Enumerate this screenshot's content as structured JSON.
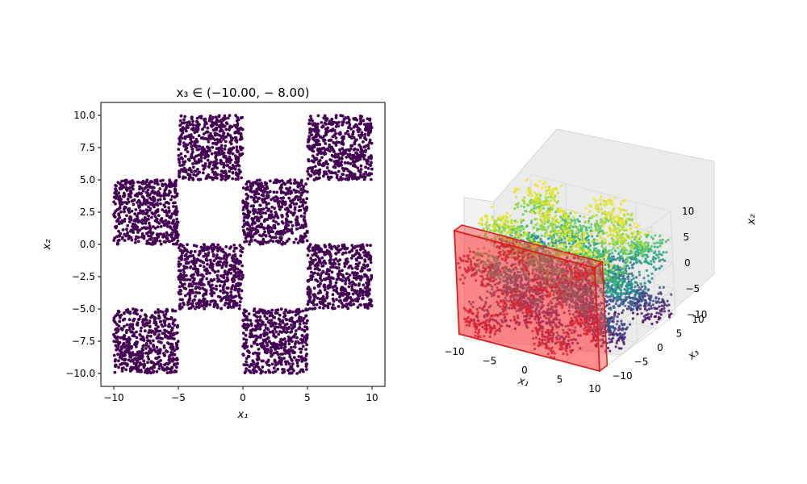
{
  "figure": {
    "panel_left_title": "x₃ ∈ (−10.00, − 8.00)"
  },
  "chart_data": [
    {
      "type": "scatter",
      "title": "x₃ ∈ (−10.00, − 8.00)",
      "xlabel": "x₁",
      "ylabel": "x₂",
      "xlim": [
        -11,
        11
      ],
      "ylim": [
        -11,
        11
      ],
      "xticks": [
        -10,
        -5,
        0,
        5,
        10
      ],
      "xtick_labels": [
        "−10",
        "−5",
        "0",
        "5",
        "10"
      ],
      "yticks": [
        -10.0,
        -7.5,
        -5.0,
        -2.5,
        0.0,
        2.5,
        5.0,
        7.5,
        10.0
      ],
      "ytick_labels": [
        "−10.0",
        "−7.5",
        "−5.0",
        "−2.5",
        "0.0",
        "2.5",
        "5.0",
        "7.5",
        "10.0"
      ],
      "point_color": "#440154",
      "clusters": [
        {
          "x_range": [
            -10,
            -5
          ],
          "y_range": [
            5,
            10
          ],
          "present": false
        },
        {
          "x_range": [
            -5,
            0
          ],
          "y_range": [
            5,
            10
          ],
          "present": true
        },
        {
          "x_range": [
            5,
            10
          ],
          "y_range": [
            5,
            10
          ],
          "present": true
        },
        {
          "x_range": [
            -10,
            -5
          ],
          "y_range": [
            0,
            5
          ],
          "present": true
        },
        {
          "x_range": [
            0,
            5
          ],
          "y_range": [
            0,
            5
          ],
          "present": true
        },
        {
          "x_range": [
            -5,
            0
          ],
          "y_range": [
            -5,
            0
          ],
          "present": true
        },
        {
          "x_range": [
            5,
            10
          ],
          "y_range": [
            -5,
            0
          ],
          "present": true
        },
        {
          "x_range": [
            -10,
            -5
          ],
          "y_range": [
            -10,
            -5
          ],
          "present": true
        },
        {
          "x_range": [
            0,
            5
          ],
          "y_range": [
            -10,
            -5
          ],
          "present": true
        }
      ],
      "points_per_cluster": 520
    },
    {
      "type": "scatter3d",
      "xlabel": "x₁",
      "ylabel": "x₃",
      "zlabel": "x₂",
      "xlim": [
        -10,
        10
      ],
      "ylim": [
        -10,
        10
      ],
      "zlim": [
        -10,
        10
      ],
      "xtick_labels": [
        "−10",
        "−5",
        "0",
        "5",
        "10"
      ],
      "ytick_labels": [
        "−10",
        "−5",
        "0",
        "5",
        "10"
      ],
      "ztick_labels": [
        "−10",
        "−5",
        "0",
        "5",
        "10"
      ],
      "colormap": "viridis",
      "color_by": "x₂",
      "slab": {
        "axis": "x₃",
        "range": [
          -10,
          -8
        ],
        "color": "#ff0000",
        "opacity": 0.55
      }
    }
  ]
}
